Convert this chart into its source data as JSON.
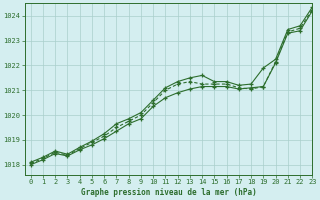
{
  "title": "Graphe pression niveau de la mer (hPa)",
  "background_color": "#d4eef0",
  "grid_color": "#aacfcc",
  "line_color": "#2d6e2d",
  "xlim": [
    -0.5,
    23
  ],
  "ylim": [
    1017.6,
    1024.5
  ],
  "xticks": [
    0,
    1,
    2,
    3,
    4,
    5,
    6,
    7,
    8,
    9,
    10,
    11,
    12,
    13,
    14,
    15,
    16,
    17,
    18,
    19,
    20,
    21,
    22,
    23
  ],
  "yticks": [
    1018,
    1019,
    1020,
    1021,
    1022,
    1023,
    1024
  ],
  "series1_x": [
    0,
    1,
    2,
    3,
    4,
    5,
    6,
    7,
    8,
    9,
    10,
    11,
    12,
    13,
    14,
    15,
    16,
    17,
    18,
    19,
    20,
    21,
    22,
    23
  ],
  "series1_y": [
    1018.0,
    1018.2,
    1018.45,
    1018.35,
    1018.6,
    1018.8,
    1019.05,
    1019.35,
    1019.65,
    1019.85,
    1020.35,
    1020.7,
    1020.9,
    1021.05,
    1021.15,
    1021.15,
    1021.15,
    1021.05,
    1021.1,
    1021.15,
    1022.1,
    1023.3,
    1023.4,
    1024.2
  ],
  "series2_x": [
    0,
    1,
    2,
    3,
    4,
    5,
    6,
    7,
    8,
    9,
    10,
    11,
    12,
    13,
    14,
    15,
    16,
    17,
    18,
    19,
    20,
    21,
    22,
    23
  ],
  "series2_y": [
    1018.05,
    1018.25,
    1018.5,
    1018.38,
    1018.65,
    1018.9,
    1019.15,
    1019.5,
    1019.75,
    1020.0,
    1020.5,
    1021.0,
    1021.25,
    1021.35,
    1021.25,
    1021.25,
    1021.25,
    1021.1,
    1021.05,
    1021.15,
    1022.15,
    1023.35,
    1023.5,
    1024.25
  ],
  "series3_x": [
    0,
    1,
    2,
    3,
    4,
    5,
    6,
    7,
    8,
    9,
    10,
    11,
    12,
    13,
    14,
    15,
    16,
    17,
    18,
    19,
    20,
    21,
    22,
    23
  ],
  "series3_y": [
    1018.1,
    1018.3,
    1018.55,
    1018.42,
    1018.7,
    1018.95,
    1019.25,
    1019.65,
    1019.85,
    1020.1,
    1020.6,
    1021.1,
    1021.35,
    1021.5,
    1021.6,
    1021.35,
    1021.35,
    1021.2,
    1021.25,
    1021.9,
    1022.25,
    1023.45,
    1023.6,
    1024.35
  ]
}
